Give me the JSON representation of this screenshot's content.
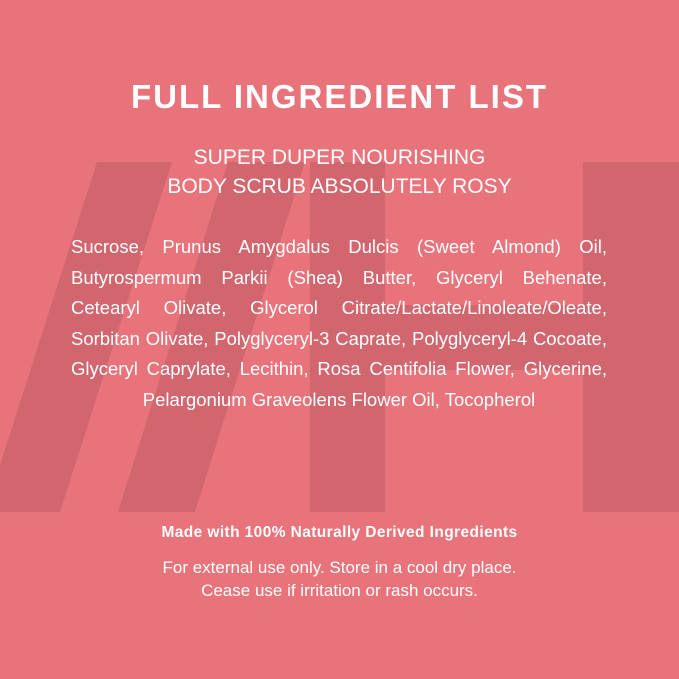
{
  "title": "FULL INGREDIENT LIST",
  "product_line1": "SUPER DUPER NOURISHING",
  "product_line2": "BODY SCRUB ABSOLUTELY ROSY",
  "ingredients": "Sucrose, Prunus Amygdalus Dulcis (Sweet Almond) Oil, Butyrospermum Parkii (Shea) Butter, Glyceryl Behenate, Cetearyl Olivate, Glycerol Citrate/Lactate/Linoleate/Oleate, Sorbitan Olivate, Polyglyceryl-3 Caprate, Polyglyceryl-4 Cocoate, Glyceryl Caprylate, Lecithin, Rosa Centifolia Flower, Glycerine, Pelargonium Graveolens Flower Oil, Tocopherol",
  "claim": "Made with 100% Naturally Derived Ingredients",
  "note_line1": "For external use only. Store in a cool dry place.",
  "note_line2": "Cease use if irritation or rash occurs.",
  "colors": {
    "background": "#e8737a",
    "watermark": "#cf656e",
    "text": "#ffffff"
  }
}
